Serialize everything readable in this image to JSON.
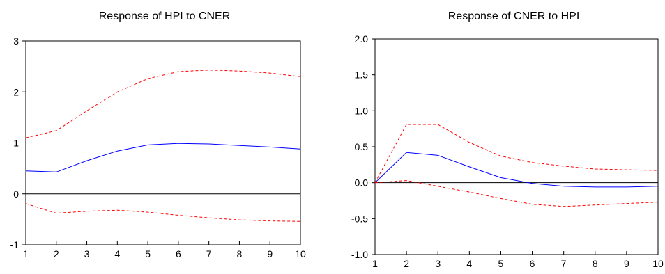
{
  "chart_data": [
    {
      "type": "line",
      "title": "Response of HPI to CNER",
      "xlabel": "",
      "ylabel": "",
      "x": [
        1,
        2,
        3,
        4,
        5,
        6,
        7,
        8,
        9,
        10
      ],
      "xlim": [
        1,
        10
      ],
      "ylim": [
        -1,
        3
      ],
      "xticks": [
        "1",
        "2",
        "3",
        "4",
        "5",
        "6",
        "7",
        "8",
        "9",
        "10"
      ],
      "yticks": [
        "-1",
        "0",
        "1",
        "2",
        "3"
      ],
      "grid": false,
      "zero_line": true,
      "series": [
        {
          "role": "response",
          "style": "solid",
          "color": "#0000ff",
          "values": [
            0.45,
            0.43,
            0.65,
            0.84,
            0.96,
            0.99,
            0.98,
            0.95,
            0.92,
            0.88
          ]
        },
        {
          "role": "upper-band",
          "style": "dashed",
          "color": "#ff0000",
          "values": [
            1.1,
            1.24,
            1.63,
            2.0,
            2.26,
            2.4,
            2.43,
            2.41,
            2.37,
            2.3
          ]
        },
        {
          "role": "lower-band",
          "style": "dashed",
          "color": "#ff0000",
          "values": [
            -0.19,
            -0.38,
            -0.34,
            -0.32,
            -0.36,
            -0.42,
            -0.47,
            -0.51,
            -0.53,
            -0.54
          ]
        }
      ]
    },
    {
      "type": "line",
      "title": "Response of CNER to HPI",
      "xlabel": "",
      "ylabel": "",
      "x": [
        1,
        2,
        3,
        4,
        5,
        6,
        7,
        8,
        9,
        10
      ],
      "xlim": [
        1,
        10
      ],
      "ylim": [
        -1.0,
        2.0
      ],
      "xticks": [
        "1",
        "2",
        "3",
        "4",
        "5",
        "6",
        "7",
        "8",
        "9",
        "10"
      ],
      "yticks": [
        "-1.0",
        "-0.5",
        "0.0",
        "0.5",
        "1.0",
        "1.5",
        "2.0"
      ],
      "grid": false,
      "zero_line": true,
      "series": [
        {
          "role": "response",
          "style": "solid",
          "color": "#0000ff",
          "values": [
            0.0,
            0.42,
            0.38,
            0.22,
            0.07,
            -0.01,
            -0.05,
            -0.06,
            -0.06,
            -0.05
          ]
        },
        {
          "role": "upper-band",
          "style": "dashed",
          "color": "#ff0000",
          "values": [
            0.0,
            0.81,
            0.81,
            0.56,
            0.37,
            0.28,
            0.23,
            0.19,
            0.18,
            0.17
          ]
        },
        {
          "role": "lower-band",
          "style": "dashed",
          "color": "#ff0000",
          "values": [
            0.0,
            0.03,
            -0.05,
            -0.13,
            -0.22,
            -0.3,
            -0.33,
            -0.31,
            -0.29,
            -0.27
          ]
        }
      ]
    }
  ]
}
